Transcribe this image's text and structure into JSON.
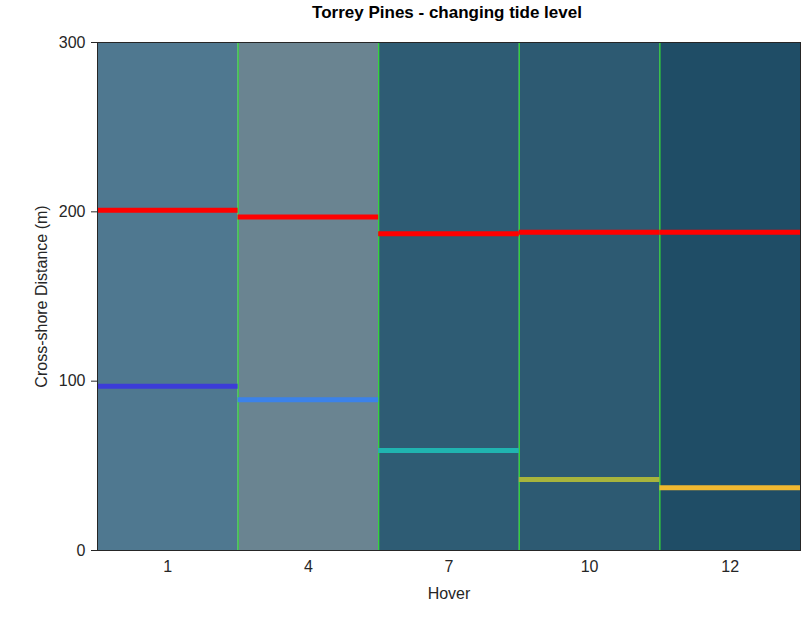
{
  "chart_data": {
    "type": "line",
    "title": "Torrey Pines - changing tide level",
    "x_label": "Hover",
    "y_label": "Cross-shore Distance (m)",
    "categories": [
      "1",
      "4",
      "7",
      "10",
      "12"
    ],
    "series": [
      {
        "color": "#ff0000",
        "values": [
          201,
          197,
          187,
          188,
          188
        ]
      },
      {
        "colors": [
          "#3c3cd8",
          "#3c82e8",
          "#20b4b0",
          "#a8b43c",
          "#f0b830"
        ],
        "values": [
          97,
          89,
          59,
          42,
          37
        ]
      }
    ],
    "ylim": [
      0,
      300
    ],
    "yticks": [
      0,
      100,
      200,
      300
    ],
    "grid": false
  }
}
